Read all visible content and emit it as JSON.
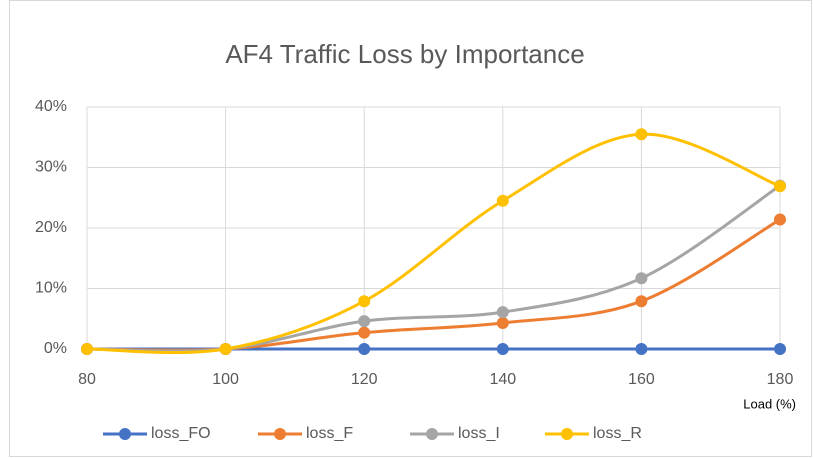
{
  "chart_data": {
    "type": "line",
    "title": "AF4 Traffic Loss by Importance",
    "x_label": "Load (%)",
    "x": [
      80,
      100,
      120,
      140,
      160,
      180
    ],
    "series": [
      {
        "name": "loss_FO",
        "color": "#4472c4",
        "values": [
          0,
          0,
          0,
          0,
          0,
          0
        ]
      },
      {
        "name": "loss_F",
        "color": "#ed7d31",
        "values": [
          0,
          0,
          2.7,
          4.3,
          7.9,
          21.4
        ]
      },
      {
        "name": "loss_I",
        "color": "#a5a5a5",
        "values": [
          0,
          0,
          4.6,
          6.1,
          11.7,
          27
        ]
      },
      {
        "name": "loss_R",
        "color": "#ffc000",
        "values": [
          0,
          0,
          7.9,
          24.5,
          35.5,
          26.9
        ]
      }
    ],
    "xlim": [
      80,
      180
    ],
    "xticks": [
      80,
      100,
      120,
      140,
      160,
      180
    ],
    "ylim": [
      0,
      40
    ],
    "yticks": [
      {
        "value": 0,
        "label": "0%"
      },
      {
        "value": 10,
        "label": "10%"
      },
      {
        "value": 20,
        "label": "20%"
      },
      {
        "value": 30,
        "label": "30%"
      },
      {
        "value": 40,
        "label": "40%"
      }
    ],
    "grid": true,
    "smooth": true,
    "legend": "bottom"
  }
}
